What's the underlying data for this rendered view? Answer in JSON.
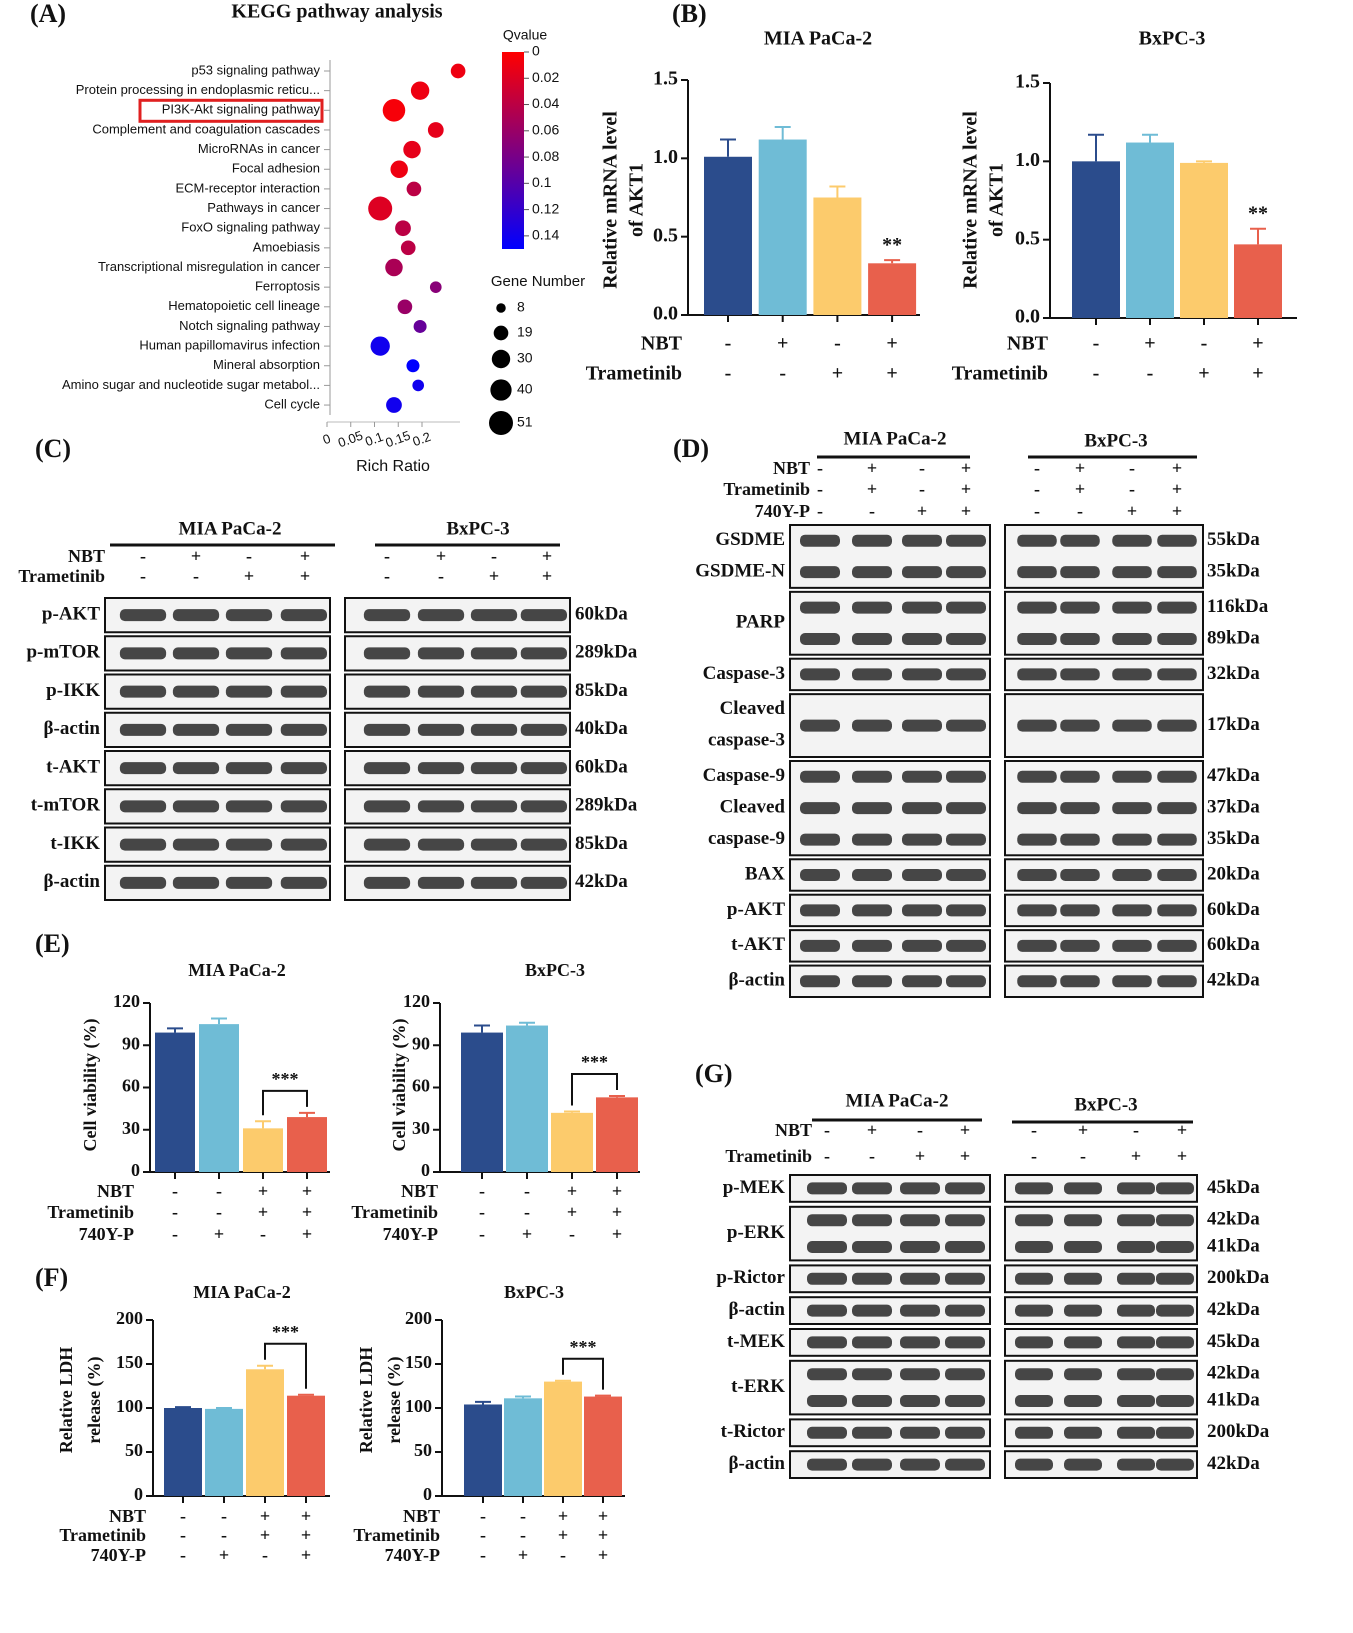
{
  "chart_data": [
    {
      "type": "bubble",
      "panel": "(A)",
      "title": "KEGG pathway analysis",
      "xlabel": "Rich Ratio",
      "categories": [
        "p53 signaling pathway",
        "Protein processing in endoplasmic reticu...",
        "PI3K-Akt signaling pathway",
        "Complement and coagulation cascades",
        "MicroRNAs in cancer",
        "Focal adhesion",
        "ECM-receptor interaction",
        "Pathways in cancer",
        "FoxO signaling pathway",
        "Amoebiasis",
        "Transcriptional misregulation in cancer",
        "Ferroptosis",
        "Hematopoietic cell lineage",
        "Notch signaling pathway",
        "Human papillomavirus infection",
        "Mineral absorption",
        "Amino sugar and nucleotide sugar metabol...",
        "Cell cycle"
      ],
      "values": [
        0.276,
        0.196,
        0.141,
        0.229,
        0.179,
        0.152,
        0.183,
        0.112,
        0.16,
        0.171,
        0.141,
        0.229,
        0.164,
        0.196,
        0.112,
        0.181,
        0.192,
        0.141
      ],
      "qvalue": [
        0.01,
        0.01,
        0.005,
        0.015,
        0.015,
        0.01,
        0.04,
        0.02,
        0.04,
        0.04,
        0.05,
        0.07,
        0.06,
        0.09,
        0.14,
        0.15,
        0.14,
        0.14
      ],
      "gene_number": [
        19,
        30,
        45,
        22,
        27,
        27,
        19,
        51,
        22,
        19,
        27,
        12,
        19,
        15,
        33,
        15,
        12,
        22
      ],
      "xlim": [
        0,
        0.28
      ],
      "xticks": [
        0,
        0.05,
        0.1,
        0.15,
        0.2
      ],
      "highlight_index": 2,
      "color_title": "Qvalue",
      "colormap": [
        "#ff0000",
        "#0000ff"
      ],
      "clim": [
        0,
        0.15
      ],
      "cticks": [
        0,
        0.02,
        0.04,
        0.06,
        0.08,
        0.1,
        0.12,
        0.14
      ],
      "size_title": "Gene Number",
      "size_legend": [
        8,
        19,
        30,
        40,
        51
      ]
    },
    {
      "type": "bar",
      "panel": "(B)",
      "title": "MIA PaCa-2",
      "ylabel": [
        "Relative mRNA level",
        "of AKT1"
      ],
      "values": [
        1.01,
        1.12,
        0.75,
        0.33
      ],
      "errors": [
        0.11,
        0.08,
        0.07,
        0.02
      ],
      "colors": [
        "#2b4c8c",
        "#6fbcd6",
        "#fccb6c",
        "#e8604c"
      ],
      "ylim": [
        0,
        1.5
      ],
      "yticks": [
        {
          "value": 0,
          "label": "0.0"
        },
        {
          "value": 0.5,
          "label": "0.5"
        },
        {
          "value": 1,
          "label": "1.0"
        },
        {
          "value": 1.5,
          "label": "1.5"
        }
      ],
      "conditions": [
        {
          "name": "NBT",
          "signs": [
            "-",
            "+",
            "-",
            "+"
          ]
        },
        {
          "name": "Trametinib",
          "signs": [
            "-",
            "-",
            "+",
            "+"
          ]
        }
      ],
      "annotation": {
        "text": "**",
        "index": 3
      }
    },
    {
      "type": "bar",
      "title": "BxPC-3",
      "ylabel": [
        "Relative mRNA level",
        "of AKT1"
      ],
      "values": [
        1.0,
        1.12,
        0.99,
        0.47
      ],
      "errors": [
        0.17,
        0.05,
        0.01,
        0.1
      ],
      "colors": [
        "#2b4c8c",
        "#6fbcd6",
        "#fccb6c",
        "#e8604c"
      ],
      "ylim": [
        0,
        1.5
      ],
      "yticks": [
        {
          "value": 0,
          "label": "0.0"
        },
        {
          "value": 0.5,
          "label": "0.5"
        },
        {
          "value": 1,
          "label": "1.0"
        },
        {
          "value": 1.5,
          "label": "1.5"
        }
      ],
      "conditions": [
        {
          "name": "NBT",
          "signs": [
            "-",
            "+",
            "-",
            "+"
          ]
        },
        {
          "name": "Trametinib",
          "signs": [
            "-",
            "-",
            "+",
            "+"
          ]
        }
      ],
      "annotation": {
        "text": "**",
        "index": 3
      }
    },
    {
      "type": "bar",
      "panel": "(E)",
      "title": "MIA PaCa-2",
      "ylabel": [
        "Cell viability (%)"
      ],
      "values": [
        99,
        105,
        31,
        39
      ],
      "errors": [
        3,
        4,
        5,
        3
      ],
      "colors": [
        "#2b4c8c",
        "#6fbcd6",
        "#fccb6c",
        "#e8604c"
      ],
      "ylim": [
        0,
        120
      ],
      "yticks": [
        0,
        30,
        60,
        90,
        120
      ],
      "conditions": [
        {
          "name": "NBT",
          "signs": [
            "-",
            "-",
            "+",
            "+"
          ]
        },
        {
          "name": "Trametinib",
          "signs": [
            "-",
            "-",
            "+",
            "+"
          ]
        },
        {
          "name": "740Y-P",
          "signs": [
            "-",
            "+",
            "-",
            "+"
          ]
        }
      ],
      "bracket": {
        "text": "***",
        "between": [
          2,
          3
        ]
      }
    },
    {
      "type": "bar",
      "title": "BxPC-3",
      "ylabel": [
        "Cell viability (%)"
      ],
      "values": [
        99,
        104,
        42,
        53
      ],
      "errors": [
        5,
        2,
        1,
        1
      ],
      "colors": [
        "#2b4c8c",
        "#6fbcd6",
        "#fccb6c",
        "#e8604c"
      ],
      "ylim": [
        0,
        120
      ],
      "yticks": [
        0,
        30,
        60,
        90,
        120
      ],
      "conditions": [
        {
          "name": "NBT",
          "signs": [
            "-",
            "-",
            "+",
            "+"
          ]
        },
        {
          "name": "Trametinib",
          "signs": [
            "-",
            "-",
            "+",
            "+"
          ]
        },
        {
          "name": "740Y-P",
          "signs": [
            "-",
            "+",
            "-",
            "+"
          ]
        }
      ],
      "bracket": {
        "text": "***",
        "between": [
          2,
          3
        ]
      }
    },
    {
      "type": "bar",
      "panel": "(F)",
      "title": "MIA PaCa-2",
      "ylabel": [
        "Relative LDH",
        "release (%)"
      ],
      "values": [
        100,
        99,
        144,
        114
      ],
      "errors": [
        1,
        1,
        4,
        1
      ],
      "colors": [
        "#2b4c8c",
        "#6fbcd6",
        "#fccb6c",
        "#e8604c"
      ],
      "ylim": [
        0,
        200
      ],
      "yticks": [
        0,
        50,
        100,
        150,
        200
      ],
      "conditions": [
        {
          "name": "NBT",
          "signs": [
            "-",
            "-",
            "+",
            "+"
          ]
        },
        {
          "name": "Trametinib",
          "signs": [
            "-",
            "-",
            "+",
            "+"
          ]
        },
        {
          "name": "740Y-P",
          "signs": [
            "-",
            "+",
            "-",
            "+"
          ]
        }
      ],
      "bracket": {
        "text": "***",
        "between": [
          2,
          3
        ]
      }
    },
    {
      "type": "bar",
      "title": "BxPC-3",
      "ylabel": [
        "Relative LDH",
        "release (%)"
      ],
      "values": [
        104,
        111,
        130,
        113
      ],
      "errors": [
        3,
        2,
        1,
        1
      ],
      "colors": [
        "#2b4c8c",
        "#6fbcd6",
        "#fccb6c",
        "#e8604c"
      ],
      "ylim": [
        0,
        200
      ],
      "yticks": [
        0,
        50,
        100,
        150,
        200
      ],
      "conditions": [
        {
          "name": "NBT",
          "signs": [
            "-",
            "-",
            "+",
            "+"
          ]
        },
        {
          "name": "Trametinib",
          "signs": [
            "-",
            "-",
            "+",
            "+"
          ]
        },
        {
          "name": "740Y-P",
          "signs": [
            "-",
            "+",
            "-",
            "+"
          ]
        }
      ],
      "bracket": {
        "text": "***",
        "between": [
          2,
          3
        ]
      }
    }
  ],
  "blots": [
    {
      "panel": "(C)",
      "groups": [
        "MIA PaCa-2",
        "BxPC-3"
      ],
      "conditions": [
        {
          "name": "NBT",
          "signs": [
            "-",
            "+",
            "-",
            "+"
          ]
        },
        {
          "name": "Trametinib",
          "signs": [
            "-",
            "-",
            "+",
            "+"
          ]
        }
      ],
      "rows": [
        {
          "labels": [
            "p-AKT"
          ],
          "kda": [
            "60kDa"
          ]
        },
        {
          "labels": [
            "p-mTOR"
          ],
          "kda": [
            "289kDa"
          ]
        },
        {
          "labels": [
            "p-IKK"
          ],
          "kda": [
            "85kDa"
          ]
        },
        {
          "labels": [
            "β-actin"
          ],
          "kda": [
            "40kDa"
          ]
        },
        {
          "labels": [
            "t-AKT"
          ],
          "kda": [
            "60kDa"
          ]
        },
        {
          "labels": [
            "t-mTOR"
          ],
          "kda": [
            "289kDa"
          ]
        },
        {
          "labels": [
            "t-IKK"
          ],
          "kda": [
            "85kDa"
          ]
        },
        {
          "labels": [
            "β-actin"
          ],
          "kda": [
            "42kDa"
          ]
        }
      ]
    },
    {
      "panel": "(D)",
      "groups": [
        "MIA PaCa-2",
        "BxPC-3"
      ],
      "conditions": [
        {
          "name": "NBT",
          "signs": [
            "-",
            "+",
            "-",
            "+"
          ]
        },
        {
          "name": "Trametinib",
          "signs": [
            "-",
            "+",
            "-",
            "+"
          ]
        },
        {
          "name": "740Y-P",
          "signs": [
            "-",
            "-",
            "+",
            "+"
          ]
        }
      ],
      "rows": [
        {
          "labels": [
            "GSDME",
            "GSDME-N"
          ],
          "kda": [
            "55kDa",
            "35kDa"
          ]
        },
        {
          "labels": [
            "PARP"
          ],
          "kda": [
            "116kDa",
            "89kDa"
          ]
        },
        {
          "labels": [
            "Caspase-3"
          ],
          "kda": [
            "32kDa"
          ]
        },
        {
          "labels": [
            "Cleaved",
            "caspase-3"
          ],
          "kda": [
            "17kDa"
          ]
        },
        {
          "labels": [
            "Caspase-9",
            "Cleaved",
            "caspase-9"
          ],
          "kda": [
            "47kDa",
            "37kDa",
            "35kDa"
          ]
        },
        {
          "labels": [
            "BAX"
          ],
          "kda": [
            "20kDa"
          ]
        },
        {
          "labels": [
            "p-AKT"
          ],
          "kda": [
            "60kDa"
          ]
        },
        {
          "labels": [
            "t-AKT"
          ],
          "kda": [
            "60kDa"
          ]
        },
        {
          "labels": [
            "β-actin"
          ],
          "kda": [
            "42kDa"
          ]
        }
      ]
    },
    {
      "panel": "(G)",
      "groups": [
        "MIA PaCa-2",
        "BxPC-3"
      ],
      "conditions": [
        {
          "name": "NBT",
          "signs": [
            "-",
            "+",
            "-",
            "+"
          ]
        },
        {
          "name": "Trametinib",
          "signs": [
            "-",
            "-",
            "+",
            "+"
          ]
        }
      ],
      "rows": [
        {
          "labels": [
            "p-MEK"
          ],
          "kda": [
            "45kDa"
          ]
        },
        {
          "labels": [
            "p-ERK"
          ],
          "kda": [
            "42kDa",
            "41kDa"
          ]
        },
        {
          "labels": [
            "p-Rictor"
          ],
          "kda": [
            "200kDa"
          ]
        },
        {
          "labels": [
            "β-actin"
          ],
          "kda": [
            "42kDa"
          ]
        },
        {
          "labels": [
            "t-MEK"
          ],
          "kda": [
            "45kDa"
          ]
        },
        {
          "labels": [
            "t-ERK"
          ],
          "kda": [
            "42kDa",
            "41kDa"
          ]
        },
        {
          "labels": [
            "t-Rictor"
          ],
          "kda": [
            "200kDa"
          ]
        },
        {
          "labels": [
            "β-actin"
          ],
          "kda": [
            "42kDa"
          ]
        }
      ]
    }
  ]
}
